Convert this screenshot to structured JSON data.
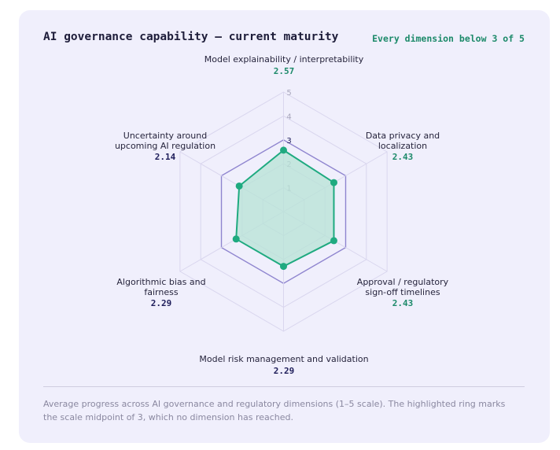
{
  "header": {
    "title": "AI governance capability — current maturity",
    "badge": "Every dimension below 3 of 5"
  },
  "colors": {
    "card_background": "#f0effc",
    "grid_ring": "#d9d6ee",
    "midpoint_ring": "#8f85cf",
    "series_line": "#1faa80",
    "series_fill": "#b7e3d6",
    "title": "#1e1d3a",
    "value_teal": "#1d8a6a",
    "value_indigo": "#1e1d5a"
  },
  "chart_data": {
    "type": "radar",
    "title": "AI governance capability — current maturity",
    "scale_min": 0,
    "scale_max": 5,
    "ticks": [
      "1",
      "2",
      "3",
      "4",
      "5"
    ],
    "highlighted_ring": 3,
    "axes": [
      {
        "label": "Model explainability / interpretability",
        "value": 2.57,
        "value_text": "2.57",
        "value_color": "teal"
      },
      {
        "label": "Data privacy and localization",
        "value": 2.43,
        "value_text": "2.43",
        "value_color": "teal"
      },
      {
        "label": "Approval / regulatory sign-off timelines",
        "value": 2.43,
        "value_text": "2.43",
        "value_color": "teal"
      },
      {
        "label": "Model risk management and validation",
        "value": 2.29,
        "value_text": "2.29",
        "value_color": "indigo"
      },
      {
        "label": "Algorithmic bias and fairness",
        "value": 2.29,
        "value_text": "2.29",
        "value_color": "indigo"
      },
      {
        "label": "Uncertainty around upcoming AI regulation",
        "value": 2.14,
        "value_text": "2.14",
        "value_color": "indigo"
      }
    ],
    "grid": true,
    "legend": "none"
  },
  "footer": {
    "caption": "Average progress across AI governance and regulatory dimensions (1–5 scale). The highlighted ring marks the scale midpoint of 3, which no dimension has reached."
  }
}
